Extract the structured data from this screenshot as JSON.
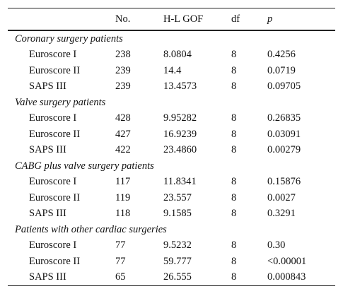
{
  "header": {
    "col0": "",
    "col1": "No.",
    "col2": "H-L GOF",
    "col3": "df",
    "col4": "p"
  },
  "groups": [
    {
      "title": "Coronary surgery patients",
      "rows": [
        {
          "label": "Euroscore I",
          "no": "238",
          "hl": "8.0804",
          "df": "8",
          "p": "0.4256"
        },
        {
          "label": "Euroscore II",
          "no": "239",
          "hl": "14.4",
          "df": "8",
          "p": "0.0719"
        },
        {
          "label": "SAPS III",
          "no": "239",
          "hl": "13.4573",
          "df": "8",
          "p": "0.09705"
        }
      ]
    },
    {
      "title": "Valve surgery patients",
      "rows": [
        {
          "label": "Euroscore I",
          "no": "428",
          "hl": "9.95282",
          "df": "8",
          "p": "0.26835"
        },
        {
          "label": "Euroscore II",
          "no": "427",
          "hl": "16.9239",
          "df": "8",
          "p": "0.03091"
        },
        {
          "label": "SAPS III",
          "no": "422",
          "hl": "23.4860",
          "df": "8",
          "p": "0.00279"
        }
      ]
    },
    {
      "title": "CABG plus valve surgery patients",
      "rows": [
        {
          "label": "Euroscore I",
          "no": "117",
          "hl": "11.8341",
          "df": "8",
          "p": "0.15876"
        },
        {
          "label": "Euroscore II",
          "no": "119",
          "hl": "23.557",
          "df": "8",
          "p": "0.0027"
        },
        {
          "label": "SAPS III",
          "no": "118",
          "hl": "9.1585",
          "df": "8",
          "p": "0.3291"
        }
      ]
    },
    {
      "title": "Patients with other cardiac surgeries",
      "rows": [
        {
          "label": "Euroscore I",
          "no": "77",
          "hl": "9.5232",
          "df": "8",
          "p": "0.30"
        },
        {
          "label": "Euroscore II",
          "no": "77",
          "hl": "59.777",
          "df": "8",
          "p": "<0.00001"
        },
        {
          "label": "SAPS III",
          "no": "65",
          "hl": "26.555",
          "df": "8",
          "p": "0.000843"
        }
      ]
    }
  ]
}
